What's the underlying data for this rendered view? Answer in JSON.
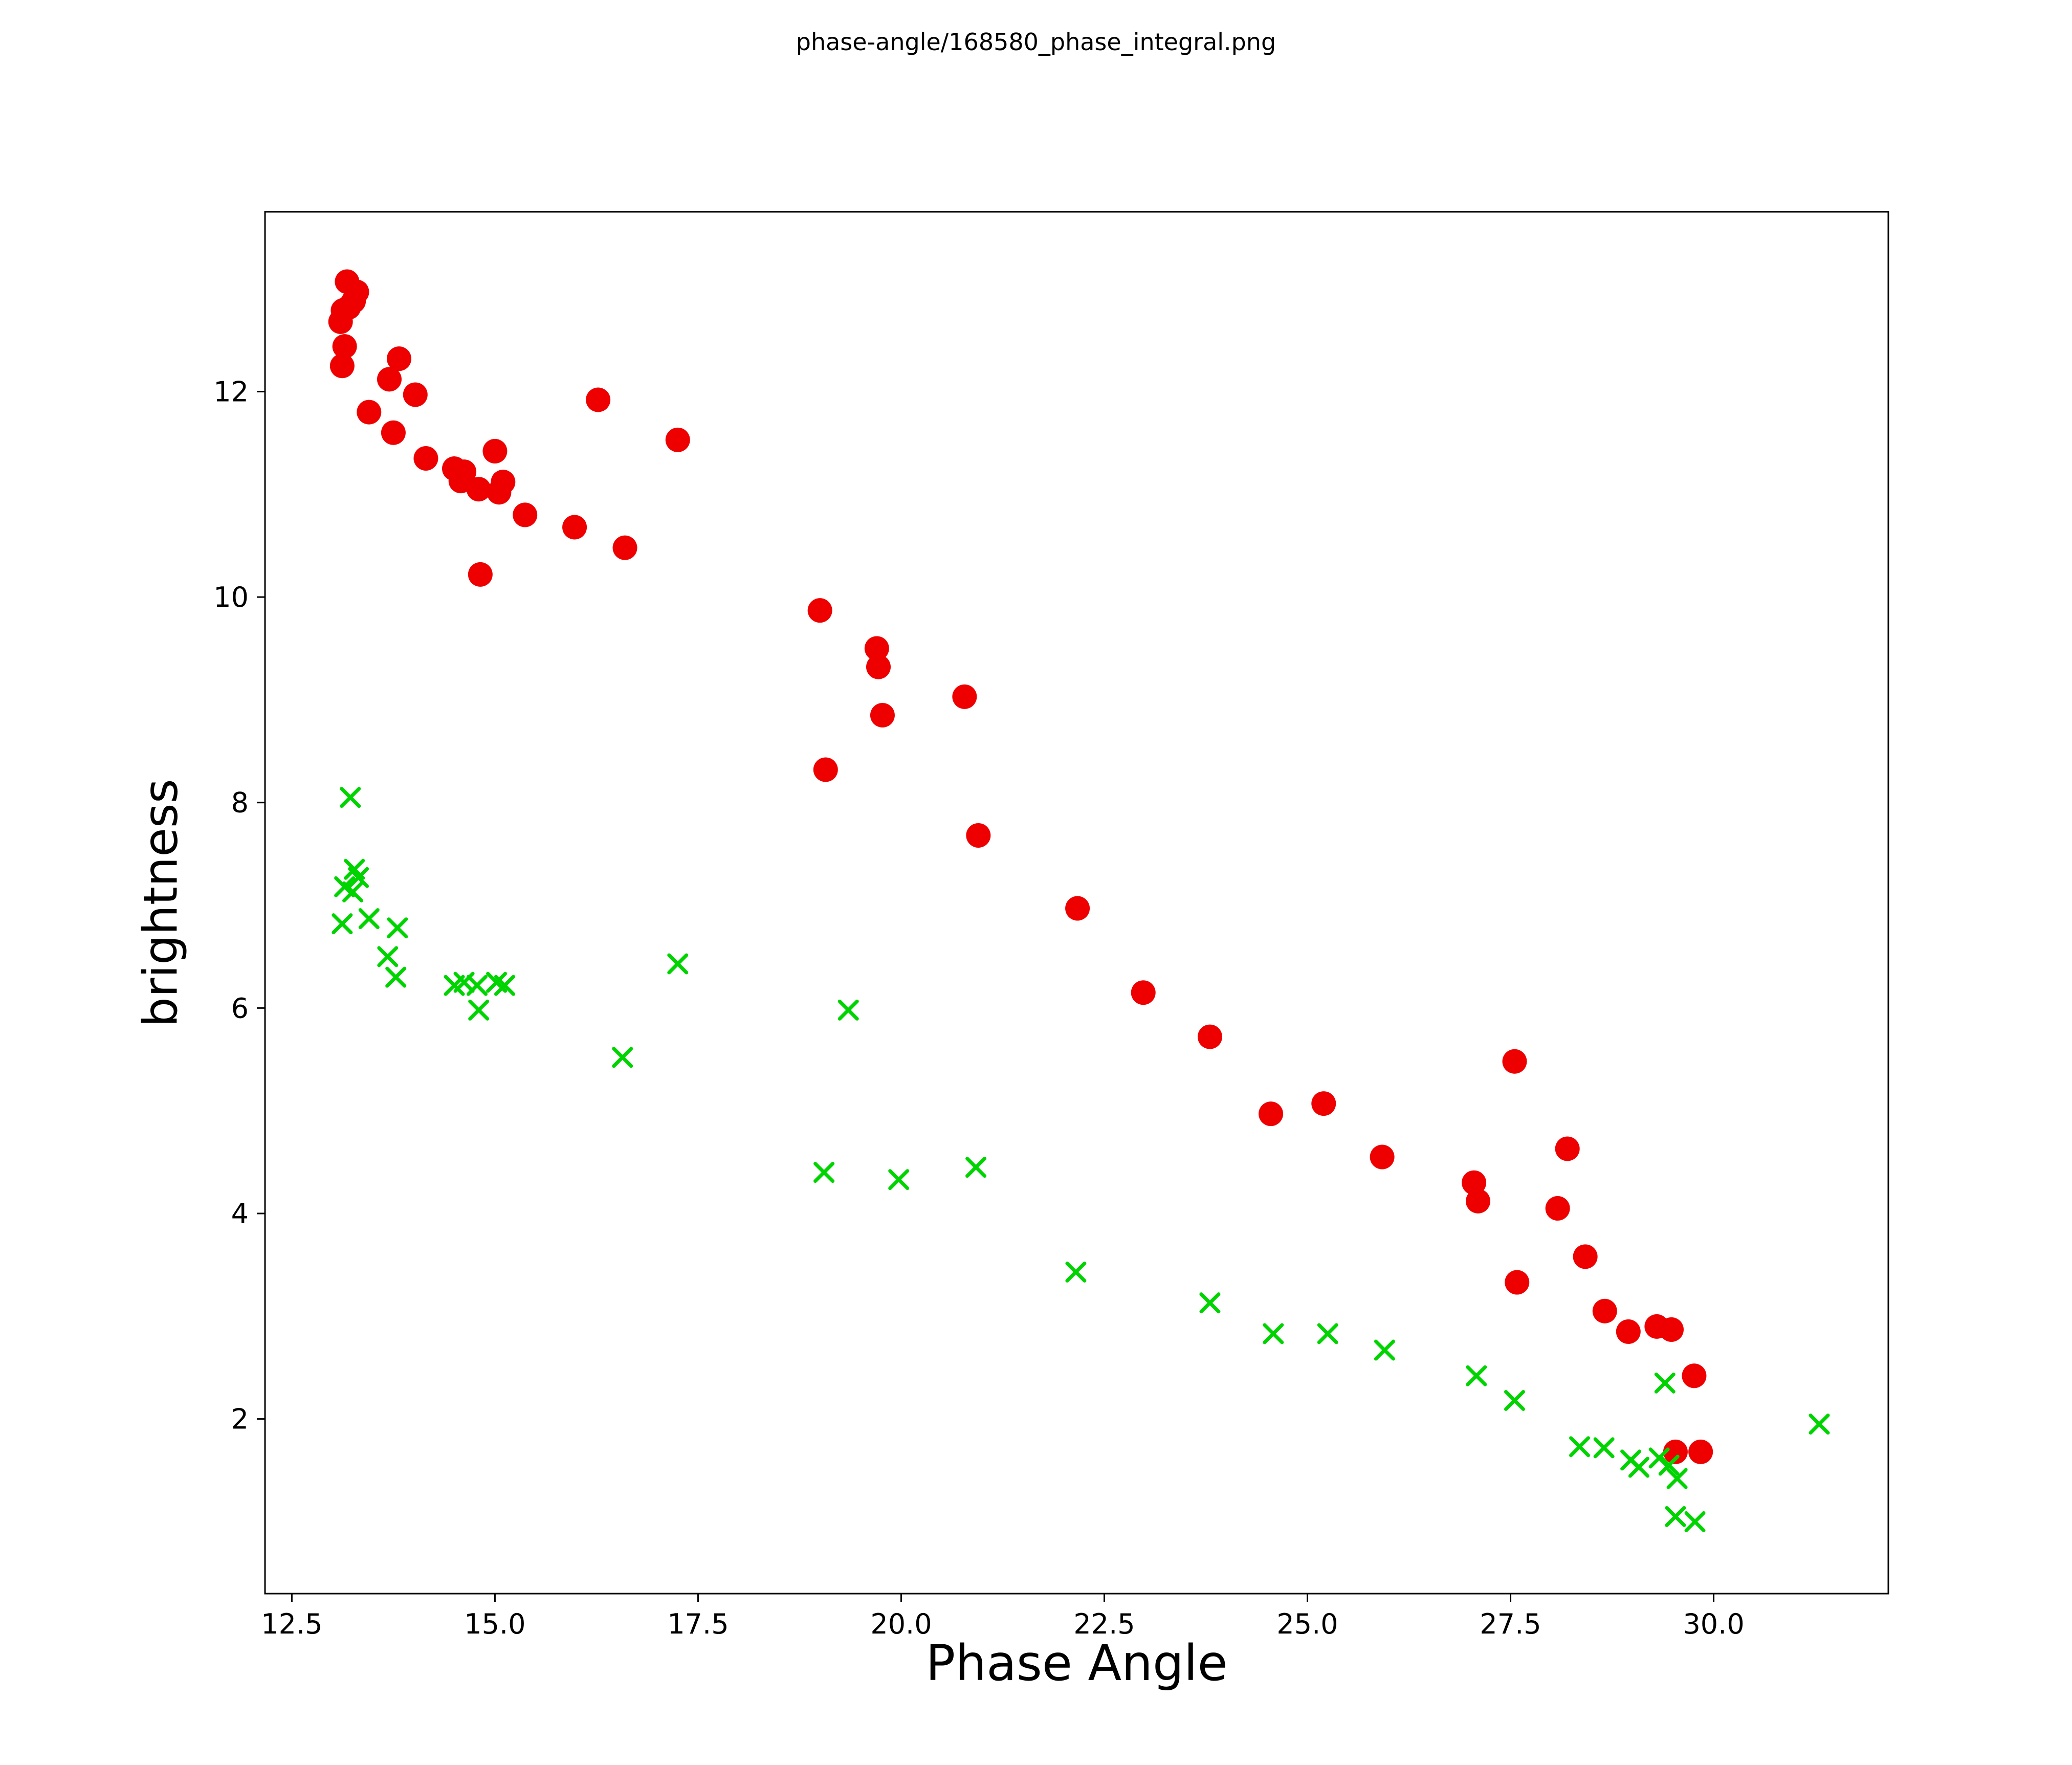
{
  "chart_data": {
    "type": "scatter",
    "title": "phase-angle/168580_phase_integral.png",
    "xlabel": "Phase Angle",
    "ylabel": "brightness",
    "xlim": [
      12.17,
      32.15
    ],
    "ylim": [
      0.3,
      13.75
    ],
    "xtick_values": [
      12.5,
      15.0,
      17.5,
      20.0,
      22.5,
      25.0,
      27.5,
      30.0
    ],
    "xtick_labels": [
      "12.5",
      "15.0",
      "17.5",
      "20.0",
      "22.5",
      "25.0",
      "27.5",
      "30.0"
    ],
    "ytick_values": [
      2,
      4,
      6,
      8,
      10,
      12
    ],
    "ytick_labels": [
      "2",
      "4",
      "6",
      "8",
      "10",
      "12"
    ],
    "grid": false,
    "series": [
      {
        "name": "filled-circles",
        "marker": "circle",
        "color": "#ee0000",
        "points": [
          [
            13.1,
            12.68
          ],
          [
            13.13,
            12.79
          ],
          [
            13.18,
            13.07
          ],
          [
            13.3,
            12.97
          ],
          [
            13.26,
            12.88
          ],
          [
            13.2,
            12.82
          ],
          [
            13.15,
            12.44
          ],
          [
            13.12,
            12.25
          ],
          [
            13.45,
            11.8
          ],
          [
            13.7,
            12.12
          ],
          [
            13.82,
            12.32
          ],
          [
            14.02,
            11.97
          ],
          [
            13.75,
            11.6
          ],
          [
            14.15,
            11.35
          ],
          [
            14.5,
            11.25
          ],
          [
            14.62,
            11.22
          ],
          [
            14.58,
            11.13
          ],
          [
            14.8,
            11.05
          ],
          [
            15.0,
            11.42
          ],
          [
            15.1,
            11.12
          ],
          [
            15.05,
            11.02
          ],
          [
            15.37,
            10.8
          ],
          [
            15.98,
            10.68
          ],
          [
            16.27,
            11.92
          ],
          [
            16.6,
            10.48
          ],
          [
            14.82,
            10.22
          ],
          [
            17.25,
            11.53
          ],
          [
            19.0,
            9.87
          ],
          [
            19.7,
            9.5
          ],
          [
            19.72,
            9.32
          ],
          [
            19.77,
            8.85
          ],
          [
            20.78,
            9.03
          ],
          [
            19.07,
            8.32
          ],
          [
            20.95,
            7.68
          ],
          [
            22.17,
            6.97
          ],
          [
            22.98,
            6.15
          ],
          [
            23.8,
            5.72
          ],
          [
            24.55,
            4.97
          ],
          [
            25.2,
            5.07
          ],
          [
            25.92,
            4.55
          ],
          [
            27.55,
            5.48
          ],
          [
            27.05,
            4.3
          ],
          [
            27.1,
            4.12
          ],
          [
            28.2,
            4.63
          ],
          [
            28.08,
            4.05
          ],
          [
            27.58,
            3.33
          ],
          [
            28.42,
            3.58
          ],
          [
            28.66,
            3.05
          ],
          [
            28.95,
            2.85
          ],
          [
            29.3,
            2.9
          ],
          [
            29.48,
            2.87
          ],
          [
            29.76,
            2.42
          ],
          [
            29.53,
            1.68
          ],
          [
            29.84,
            1.68
          ]
        ]
      },
      {
        "name": "x-markers",
        "marker": "x",
        "color": "#00d400",
        "points": [
          [
            13.22,
            8.05
          ],
          [
            13.27,
            7.35
          ],
          [
            13.32,
            7.27
          ],
          [
            13.15,
            7.18
          ],
          [
            13.25,
            7.13
          ],
          [
            13.12,
            6.82
          ],
          [
            13.45,
            6.87
          ],
          [
            13.8,
            6.78
          ],
          [
            13.68,
            6.5
          ],
          [
            13.78,
            6.3
          ],
          [
            14.5,
            6.22
          ],
          [
            14.62,
            6.25
          ],
          [
            14.78,
            6.22
          ],
          [
            15.02,
            6.25
          ],
          [
            15.12,
            6.22
          ],
          [
            14.8,
            5.98
          ],
          [
            17.25,
            6.43
          ],
          [
            19.35,
            5.98
          ],
          [
            16.57,
            5.52
          ],
          [
            19.05,
            4.4
          ],
          [
            19.97,
            4.33
          ],
          [
            20.92,
            4.45
          ],
          [
            22.15,
            3.43
          ],
          [
            23.8,
            3.13
          ],
          [
            24.58,
            2.83
          ],
          [
            25.25,
            2.83
          ],
          [
            25.95,
            2.67
          ],
          [
            27.08,
            2.42
          ],
          [
            27.55,
            2.18
          ],
          [
            28.35,
            1.73
          ],
          [
            28.65,
            1.72
          ],
          [
            28.98,
            1.6
          ],
          [
            29.08,
            1.53
          ],
          [
            29.33,
            1.62
          ],
          [
            29.45,
            1.55
          ],
          [
            29.55,
            1.42
          ],
          [
            29.53,
            1.05
          ],
          [
            29.77,
            1.0
          ],
          [
            29.4,
            2.35
          ],
          [
            31.3,
            1.95
          ]
        ]
      }
    ]
  }
}
